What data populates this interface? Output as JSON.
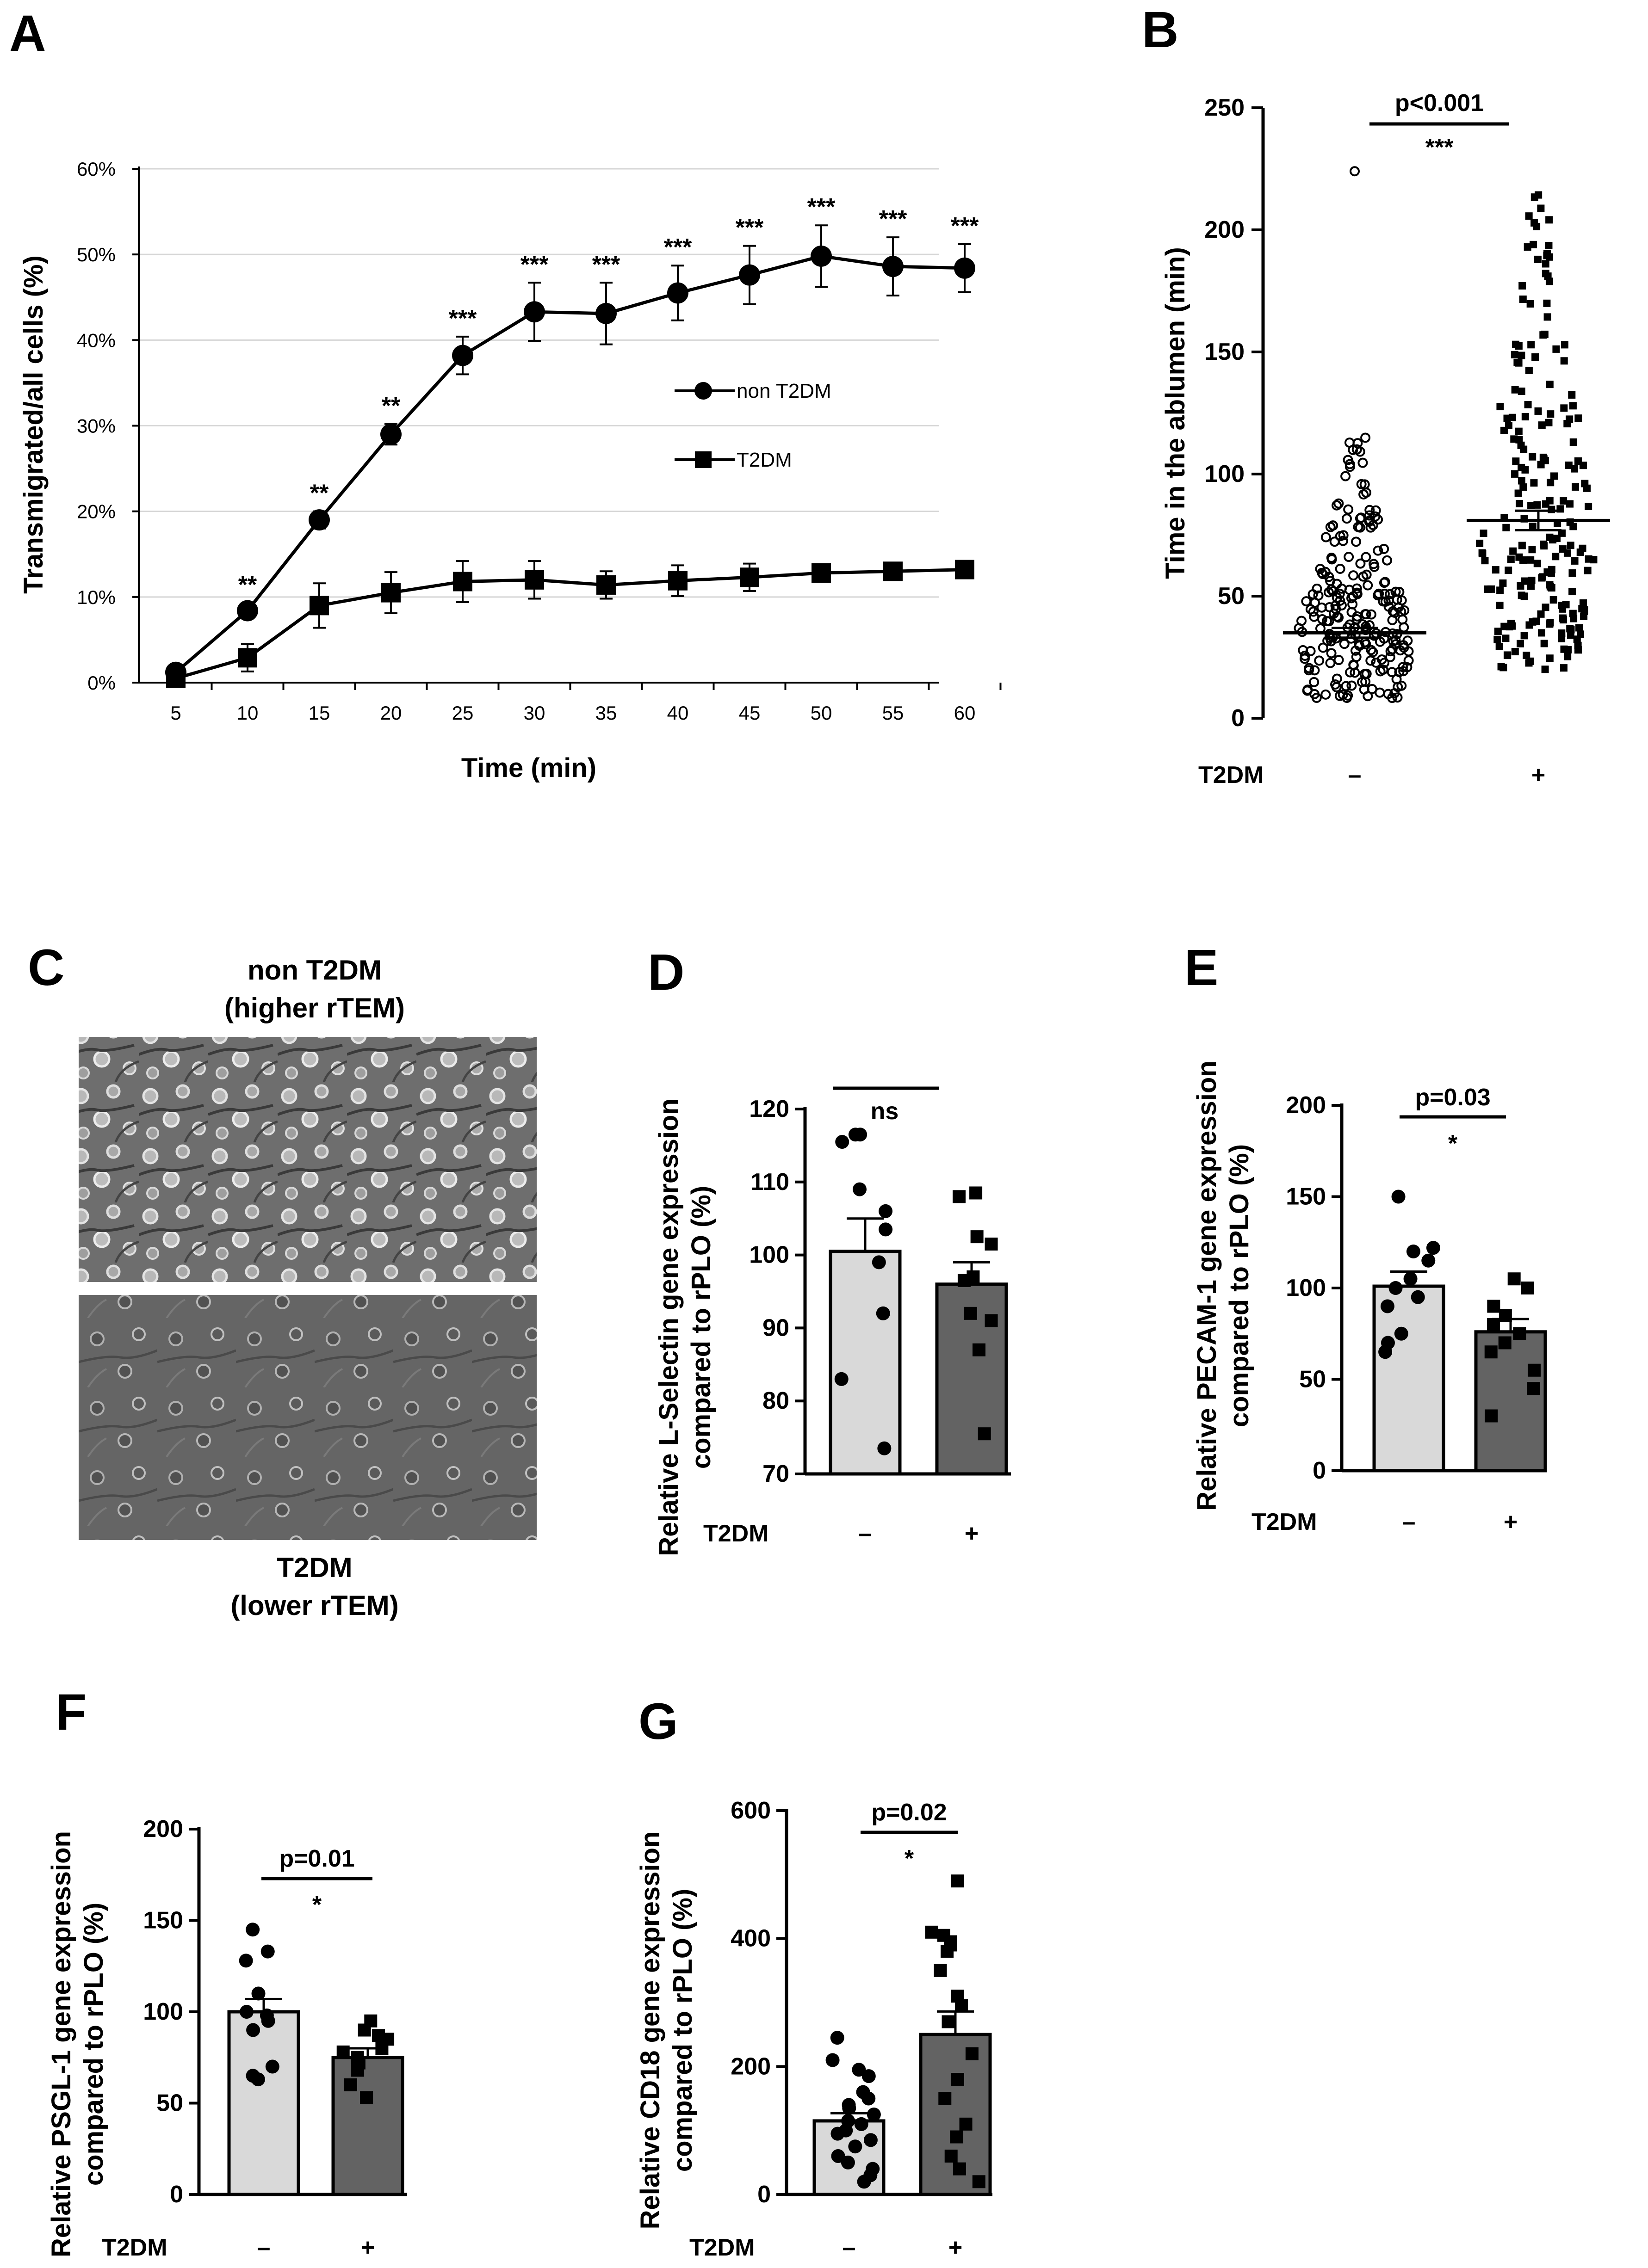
{
  "chart_data": [
    {
      "panel": "A",
      "type": "line",
      "title": "",
      "xlabel": "Time (min)",
      "ylabel": "Transmigrated/all cells (%)",
      "x": [
        5,
        10,
        15,
        20,
        25,
        30,
        35,
        40,
        45,
        50,
        55,
        60
      ],
      "x_tick_labels": [
        "5",
        "10",
        "15",
        "20",
        "25",
        "30",
        "35",
        "40",
        "45",
        "50",
        "55",
        "60"
      ],
      "y_tick_labels": [
        "0%",
        "10%",
        "20%",
        "30%",
        "40%",
        "50%",
        "60%"
      ],
      "ylim": [
        0,
        60
      ],
      "series": [
        {
          "name": "non T2DM",
          "marker": "circle",
          "values": [
            1.2,
            8.4,
            19.0,
            29.0,
            38.2,
            43.3,
            43.1,
            45.5,
            47.6,
            49.8,
            48.6,
            48.4
          ],
          "error": [
            0.6,
            0.9,
            1.0,
            1.2,
            2.2,
            3.4,
            3.6,
            3.2,
            3.4,
            3.6,
            3.4,
            2.8
          ]
        },
        {
          "name": "T2DM",
          "marker": "square",
          "values": [
            0.5,
            2.9,
            9.0,
            10.5,
            11.8,
            12.0,
            11.4,
            11.9,
            12.3,
            12.8,
            13.0,
            13.2
          ],
          "error": [
            0.4,
            1.6,
            2.6,
            2.4,
            2.4,
            2.2,
            1.6,
            1.8,
            1.6,
            0.8,
            0.8,
            0.8
          ]
        }
      ],
      "annotations": [
        "",
        "**",
        "**",
        "**",
        "***",
        "***",
        "***",
        "***",
        "***",
        "***",
        "***",
        "***"
      ]
    },
    {
      "panel": "B",
      "type": "scatter",
      "ylabel": "Time in the ablumen (min)",
      "ylim": [
        0,
        250
      ],
      "y_tick_labels": [
        "0",
        "50",
        "100",
        "150",
        "200",
        "250"
      ],
      "group_label": "T2DM",
      "categories": [
        "–",
        "+"
      ],
      "means": [
        35,
        81
      ],
      "sem": [
        2,
        4
      ],
      "p_value_text": "p<0.001",
      "significance": "***",
      "outlier": 224
    },
    {
      "panel": "D",
      "type": "bar",
      "ylabel": "Relative L-Selectin gene expression compared to rPLO (%)",
      "ylim": [
        70,
        120
      ],
      "y_tick_labels": [
        "70",
        "80",
        "90",
        "100",
        "110",
        "120"
      ],
      "group_label": "T2DM",
      "categories": [
        "–",
        "+"
      ],
      "values": [
        100.5,
        96.0
      ],
      "sem": [
        4.5,
        3.0
      ],
      "points": [
        [
          116.5,
          116.5,
          115.5,
          109.0,
          106.0,
          103.5,
          99.0,
          92.0,
          83.0,
          73.5
        ],
        [
          108.5,
          108.0,
          102.5,
          101.5,
          97.0,
          96.5,
          92.0,
          91.0,
          87.0,
          75.5
        ]
      ],
      "significance": "ns"
    },
    {
      "panel": "E",
      "type": "bar",
      "ylabel": "Relative PECAM-1 gene expression compared to rPLO (%)",
      "ylim": [
        0,
        200
      ],
      "y_tick_labels": [
        "0",
        "50",
        "100",
        "150",
        "200"
      ],
      "group_label": "T2DM",
      "categories": [
        "–",
        "+"
      ],
      "values": [
        101,
        76
      ],
      "sem": [
        8,
        7
      ],
      "points": [
        [
          150,
          122,
          120,
          115,
          105,
          100,
          95,
          90,
          75,
          70,
          65
        ],
        [
          105,
          100,
          90,
          85,
          80,
          75,
          70,
          65,
          55,
          45,
          30
        ]
      ],
      "p_value_text": "p=0.03",
      "significance": "*"
    },
    {
      "panel": "F",
      "type": "bar",
      "ylabel": "Relative PSGL-1 gene expression compared to rPLO (%)",
      "ylim": [
        0,
        200
      ],
      "y_tick_labels": [
        "0",
        "50",
        "100",
        "150",
        "200"
      ],
      "group_label": "T2DM",
      "categories": [
        "–",
        "+"
      ],
      "values": [
        100,
        75
      ],
      "sem": [
        7,
        5
      ],
      "points": [
        [
          145,
          133,
          128,
          110,
          100,
          98,
          95,
          90,
          70,
          65,
          63
        ],
        [
          95,
          90,
          87,
          85,
          80,
          78,
          75,
          72,
          68,
          60,
          53
        ]
      ],
      "p_value_text": "p=0.01",
      "significance": "*"
    },
    {
      "panel": "G",
      "type": "bar",
      "ylabel": "Relative CD18 gene expression compared to rPLO (%)",
      "ylim": [
        0,
        600
      ],
      "y_tick_labels": [
        "0",
        "200",
        "400",
        "600"
      ],
      "group_label": "T2DM",
      "categories": [
        "–",
        "+"
      ],
      "values": [
        115,
        250
      ],
      "sem": [
        12,
        36
      ],
      "points": [
        [
          245,
          210,
          195,
          185,
          160,
          150,
          140,
          135,
          125,
          115,
          110,
          100,
          95,
          85,
          75,
          60,
          50,
          40,
          30,
          20
        ],
        [
          490,
          410,
          405,
          395,
          390,
          380,
          350,
          310,
          295,
          270,
          220,
          180,
          150,
          110,
          90,
          60,
          40,
          20
        ]
      ],
      "p_value_text": "p=0.02",
      "significance": "*"
    }
  ],
  "panel_labels": [
    "A",
    "B",
    "C",
    "D",
    "E",
    "F",
    "G"
  ],
  "legend": {
    "series1": "non T2DM",
    "series2": "T2DM"
  },
  "panel_c": {
    "top_caption_line1": "non T2DM",
    "top_caption_line2": "(higher rTEM)",
    "bottom_caption_line1": "T2DM",
    "bottom_caption_line2": "(lower rTEM)"
  },
  "colors": {
    "bar_light": "#d9d9d9",
    "bar_dark": "#636363",
    "ink": "#000000",
    "micrograph": "#6b6b6b"
  }
}
